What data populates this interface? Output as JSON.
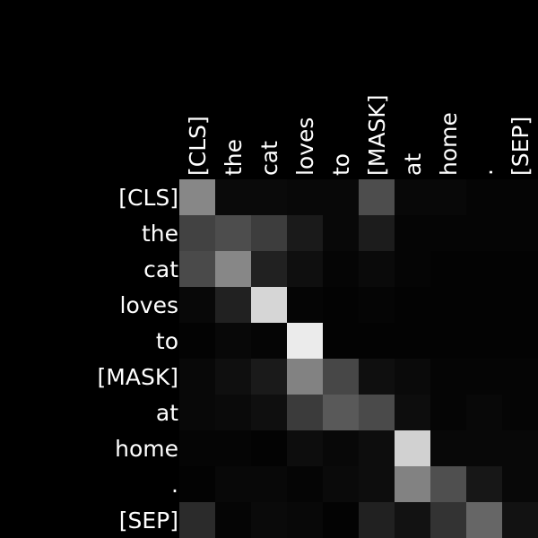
{
  "chart_data": {
    "type": "heatmap",
    "x_labels": [
      "[CLS]",
      "the",
      "cat",
      "loves",
      "to",
      "[MASK]",
      "at",
      "home",
      ".",
      "[SEP]"
    ],
    "y_labels": [
      "[CLS]",
      "the",
      "cat",
      "loves",
      "to",
      "[MASK]",
      "at",
      "home",
      ".",
      "[SEP]"
    ],
    "xlabel_position": "top",
    "colormap": "grayscale",
    "value_range": [
      0,
      1
    ],
    "matrix": [
      [
        0.53,
        0.04,
        0.04,
        0.03,
        0.03,
        0.3,
        0.03,
        0.03,
        0.02,
        0.02
      ],
      [
        0.26,
        0.3,
        0.24,
        0.1,
        0.03,
        0.11,
        0.02,
        0.02,
        0.02,
        0.02
      ],
      [
        0.29,
        0.53,
        0.13,
        0.06,
        0.02,
        0.04,
        0.02,
        0.01,
        0.01,
        0.01
      ],
      [
        0.03,
        0.13,
        0.84,
        0.02,
        0.01,
        0.02,
        0.01,
        0.01,
        0.01,
        0.01
      ],
      [
        0.01,
        0.03,
        0.02,
        0.92,
        0.01,
        0.01,
        0.01,
        0.01,
        0.01,
        0.01
      ],
      [
        0.03,
        0.06,
        0.1,
        0.51,
        0.28,
        0.06,
        0.04,
        0.02,
        0.02,
        0.02
      ],
      [
        0.03,
        0.04,
        0.06,
        0.23,
        0.35,
        0.29,
        0.05,
        0.02,
        0.03,
        0.02
      ],
      [
        0.02,
        0.02,
        0.01,
        0.05,
        0.03,
        0.05,
        0.82,
        0.03,
        0.03,
        0.03
      ],
      [
        0.01,
        0.03,
        0.03,
        0.02,
        0.04,
        0.05,
        0.51,
        0.31,
        0.09,
        0.03
      ],
      [
        0.17,
        0.02,
        0.04,
        0.03,
        0.01,
        0.13,
        0.07,
        0.2,
        0.4,
        0.07
      ]
    ]
  }
}
